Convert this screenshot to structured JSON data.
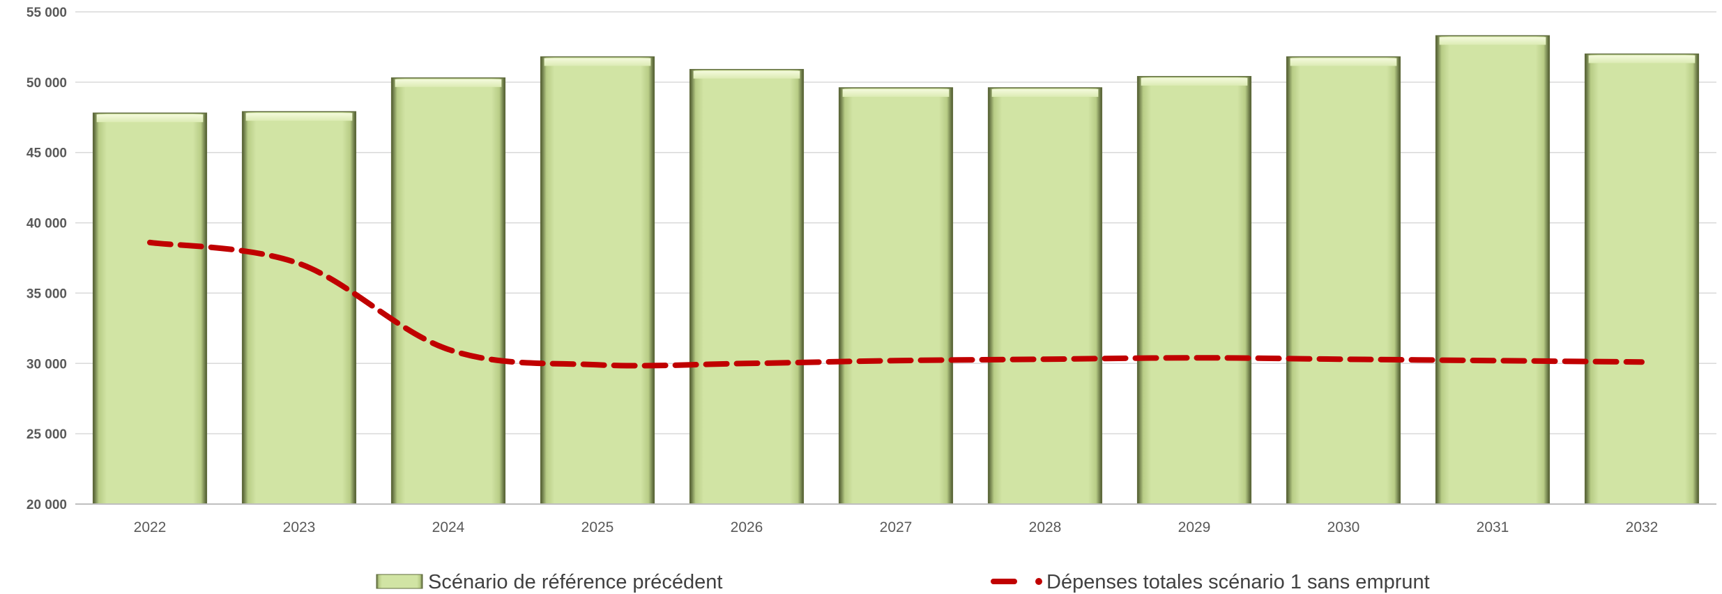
{
  "chart_data": {
    "type": "bar",
    "categories": [
      "2022",
      "2023",
      "2024",
      "2025",
      "2026",
      "2027",
      "2028",
      "2029",
      "2030",
      "2031",
      "2032"
    ],
    "series": [
      {
        "name": "Scénario de référence précédent",
        "type": "bar",
        "values": [
          47800,
          47900,
          50300,
          51800,
          50900,
          49600,
          49600,
          50400,
          51800,
          53300,
          52000
        ]
      },
      {
        "name": "Dépenses totales scénario 1 sans emprunt",
        "type": "line",
        "style": "dashed",
        "values": [
          38600,
          37100,
          31000,
          29900,
          30000,
          30200,
          30300,
          30400,
          30300,
          30200,
          30100
        ]
      }
    ],
    "ylim": [
      20000,
      55000
    ],
    "yticks": [
      "20 000",
      "25 000",
      "30 000",
      "35 000",
      "40 000",
      "45 000",
      "50 000",
      "55 000"
    ],
    "grid": true,
    "legend": "bottom",
    "colors": {
      "bar": "#d1e4a4",
      "bar_edge": "#5f6b3c",
      "line": "#c00000",
      "grid": "#d9d9d9"
    }
  }
}
